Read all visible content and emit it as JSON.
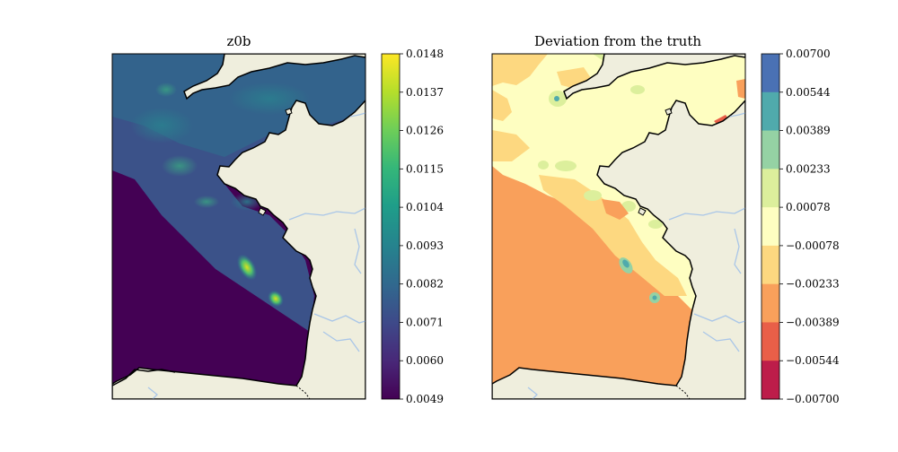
{
  "colors": {
    "land": "#efeedd",
    "rivers": "#a9c6e8",
    "coast": "#000000"
  },
  "left_panel": {
    "title": "z0b",
    "colormap": "viridis",
    "colorbar_ticks": [
      "0.0148",
      "0.0137",
      "0.0126",
      "0.0115",
      "0.0104",
      "0.0093",
      "0.0082",
      "0.0071",
      "0.0060",
      "0.0049"
    ],
    "colorbar_stops": [
      "#fde725",
      "#b5de2b",
      "#6ece58",
      "#35b779",
      "#1f9e89",
      "#26828e",
      "#31688e",
      "#3e4989",
      "#482878",
      "#440154"
    ]
  },
  "right_panel": {
    "title": "Deviation from the truth",
    "colormap": "Spectral",
    "colorbar_ticks": [
      "0.00700",
      "0.00544",
      "0.00389",
      "0.00233",
      "0.00078",
      "−0.00078",
      "−0.00233",
      "−0.00389",
      "−0.00544",
      "−0.00700"
    ],
    "colorbar_bins": [
      "#4a71b4",
      "#50aaac",
      "#95d2a4",
      "#dcef9c",
      "#fefec1",
      "#fdd880",
      "#f9a05b",
      "#e95f48",
      "#bd1d4a"
    ]
  }
}
